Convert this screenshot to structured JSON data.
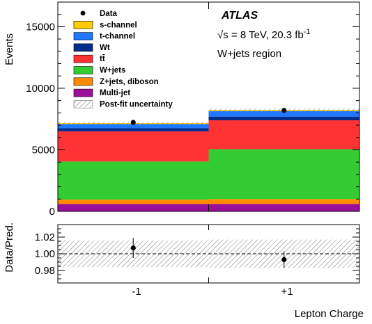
{
  "chart_data": [
    {
      "type": "bar",
      "stacked": true,
      "categories": [
        "-1",
        "+1"
      ],
      "ylabel": "Events",
      "ylim": [
        0,
        17000
      ],
      "yticks": [
        "0",
        "5000",
        "10000",
        "15000"
      ],
      "series": [
        {
          "name": "Multi-jet",
          "color": "#9a0e9a",
          "values": [
            600,
            600
          ]
        },
        {
          "name": "Z+jets, diboson",
          "color": "#ff8c00",
          "values": [
            350,
            400
          ]
        },
        {
          "name": "W+jets",
          "color": "#33cc33",
          "values": [
            3100,
            4050
          ]
        },
        {
          "name": "tt̄",
          "color": "#ff3333",
          "values": [
            2450,
            2350
          ]
        },
        {
          "name": "Wt",
          "color": "#002c8a",
          "values": [
            250,
            300
          ]
        },
        {
          "name": "t-channel",
          "color": "#1f78ff",
          "values": [
            350,
            450
          ]
        },
        {
          "name": "s-channel",
          "color": "#ffcc00",
          "values": [
            70,
            90
          ]
        }
      ],
      "data": {
        "name": "Data",
        "values": [
          7230,
          8200
        ]
      },
      "uncertainty_label": "Post-fit uncertainty",
      "legend_location": "top-left",
      "annotations": {
        "experiment": "ATLAS",
        "energy": "√s = 8 TeV, 20.3 fb",
        "energy_sup": "-1",
        "region": "W+jets region"
      }
    },
    {
      "type": "scatter",
      "categories": [
        "-1",
        "+1"
      ],
      "xlabel": "Lepton Charge",
      "ylabel": "Data/Pred.",
      "ylim": [
        0.965,
        1.035
      ],
      "yticks": [
        "0.98",
        "1.00",
        "1.02"
      ],
      "values": [
        1.007,
        0.993
      ],
      "errors": [
        0.012,
        0.01
      ],
      "band": [
        0.016,
        0.017
      ],
      "reference": 1.0
    }
  ]
}
